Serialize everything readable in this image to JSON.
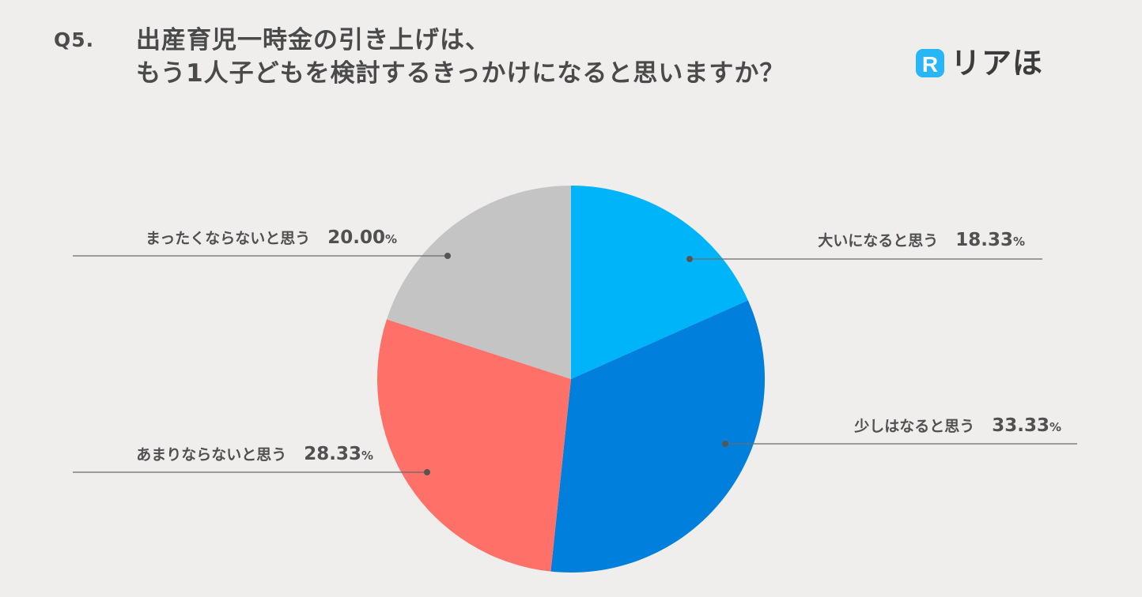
{
  "header": {
    "question_number": "Q5.",
    "title_line1": "出産育児一時金の引き上げは、",
    "title_line2": "もう1人子どもを検討するきっかけになると思いますか？"
  },
  "logo": {
    "mark": "R",
    "text": "リアほ",
    "icon": "r-logo-icon",
    "color": "#29b6f6"
  },
  "chart_data": {
    "type": "pie",
    "title": "出産育児一時金の引き上げは、もう1人子どもを検討するきっかけになると思いますか？",
    "unit": "%",
    "start": "12 o'clock, clockwise",
    "slices": [
      {
        "label": "大いになると思う",
        "value": 18.33,
        "value_label": "18.33",
        "color": "#00b4fa"
      },
      {
        "label": "少しはなると思う",
        "value": 33.33,
        "value_label": "33.33",
        "color": "#0080dc"
      },
      {
        "label": "あまりならないと思う",
        "value": 28.33,
        "value_label": "28.33",
        "color": "#ff7168"
      },
      {
        "label": "まったくならないと思う",
        "value": 20.0,
        "value_label": "20.00",
        "color": "#c4c4c4"
      }
    ]
  }
}
